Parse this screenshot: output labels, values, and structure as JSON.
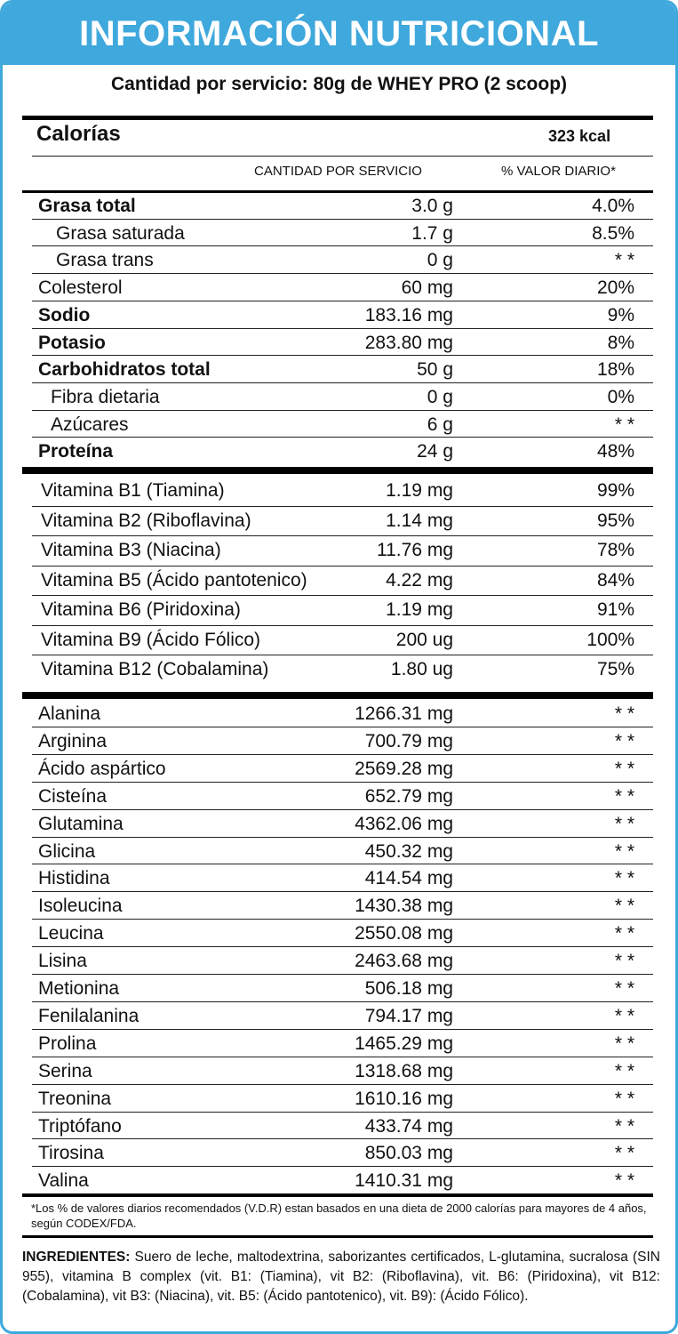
{
  "title": "INFORMACIÓN NUTRICIONAL",
  "serving": "Cantidad por servicio: 80g de WHEY PRO (2 scoop)",
  "calories": {
    "label": "Calorías",
    "value": "323 kcal"
  },
  "columns": {
    "quantity": "CANTIDAD POR SERVICIO",
    "daily_value": "% VALOR DIARIO*"
  },
  "nutrients": [
    {
      "name": "Grasa total",
      "qty": "3.0 g",
      "dv": "4.0%",
      "style": "bold"
    },
    {
      "name": "Grasa saturada",
      "qty": "1.7 g",
      "dv": "8.5%",
      "style": "ind1"
    },
    {
      "name": "Grasa trans",
      "qty": "0 g",
      "dv": "* *",
      "style": "ind1"
    },
    {
      "name": "Colesterol",
      "qty": "60 mg",
      "dv": "20%",
      "style": ""
    },
    {
      "name": "Sodio",
      "qty": "183.16 mg",
      "dv": "9%",
      "style": "bold"
    },
    {
      "name": "Potasio",
      "qty": "283.80 mg",
      "dv": "8%",
      "style": "bold"
    },
    {
      "name": "Carbohidratos total",
      "qty": "50 g",
      "dv": "18%",
      "style": "bold"
    },
    {
      "name": "Fibra dietaria",
      "qty": "0 g",
      "dv": "0%",
      "style": "ind2"
    },
    {
      "name": "Azúcares",
      "qty": "6 g",
      "dv": "* *",
      "style": "ind2"
    },
    {
      "name": "Proteína",
      "qty": "24 g",
      "dv": "48%",
      "style": "bold"
    }
  ],
  "vitamins": [
    {
      "name": "Vitamina B1 (Tiamina)",
      "qty": "1.19 mg",
      "dv": "99%"
    },
    {
      "name": "Vitamina B2 (Riboflavina)",
      "qty": "1.14 mg",
      "dv": "95%"
    },
    {
      "name": "Vitamina B3 (Niacina)",
      "qty": "11.76 mg",
      "dv": "78%"
    },
    {
      "name": "Vitamina B5 (Ácido pantotenico)",
      "qty": "4.22 mg",
      "dv": "84%"
    },
    {
      "name": "Vitamina B6 (Piridoxina)",
      "qty": "1.19 mg",
      "dv": "91%"
    },
    {
      "name": "Vitamina B9 (Ácido Fólico)",
      "qty": "200 ug",
      "dv": "100%"
    },
    {
      "name": "Vitamina B12 (Cobalamina)",
      "qty": "1.80 ug",
      "dv": "75%"
    }
  ],
  "aminoacids": [
    {
      "name": "Alanina",
      "qty": "1266.31 mg",
      "dv": "* *"
    },
    {
      "name": "Arginina",
      "qty": "700.79 mg",
      "dv": "* *"
    },
    {
      "name": "Ácido aspártico",
      "qty": "2569.28 mg",
      "dv": "* *"
    },
    {
      "name": "Cisteína",
      "qty": "652.79 mg",
      "dv": "* *"
    },
    {
      "name": "Glutamina",
      "qty": "4362.06 mg",
      "dv": "* *"
    },
    {
      "name": "Glicina",
      "qty": "450.32 mg",
      "dv": "* *"
    },
    {
      "name": "Histidina",
      "qty": "414.54 mg",
      "dv": "* *"
    },
    {
      "name": "Isoleucina",
      "qty": "1430.38 mg",
      "dv": "* *"
    },
    {
      "name": "Leucina",
      "qty": "2550.08 mg",
      "dv": "* *"
    },
    {
      "name": "Lisina",
      "qty": "2463.68 mg",
      "dv": "* *"
    },
    {
      "name": "Metionina",
      "qty": "506.18 mg",
      "dv": "* *"
    },
    {
      "name": "Fenilalanina",
      "qty": "794.17 mg",
      "dv": "* *"
    },
    {
      "name": "Prolina",
      "qty": "1465.29 mg",
      "dv": "* *"
    },
    {
      "name": "Serina",
      "qty": "1318.68 mg",
      "dv": "* *"
    },
    {
      "name": "Treonina",
      "qty": "1610.16 mg",
      "dv": "* *"
    },
    {
      "name": "Triptófano",
      "qty": "433.74 mg",
      "dv": "* *"
    },
    {
      "name": "Tirosina",
      "qty": "850.03 mg",
      "dv": "* *"
    },
    {
      "name": "Valina",
      "qty": "1410.31 mg",
      "dv": "* *"
    }
  ],
  "footnote": "*Los % de valores diarios recomendados (V.D.R) estan basados en una dieta de 2000 calorías para mayores de 4 años, según CODEX/FDA.",
  "ingredients": {
    "title": "INGREDIENTES:",
    "text": " Suero de leche, maltodextrina, saborizantes certificados, L-glutamina, sucralosa (SIN 955), vitamina B complex (vit. B1: (Tiamina), vit B2: (Riboflavina), vit. B6: (Piridoxina), vit B12: (Cobalamina), vit B3: (Niacina), vit. B5: (Ácido pantotenico), vit. B9): (Ácido Fólico)."
  },
  "colors": {
    "accent": "#3fa8dc",
    "rule": "#000000"
  }
}
